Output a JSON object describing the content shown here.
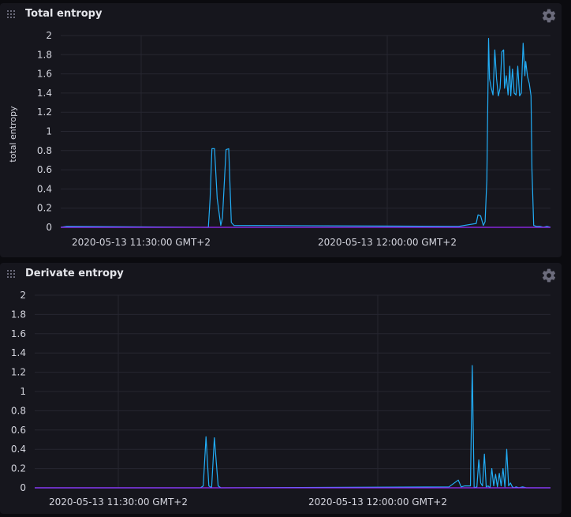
{
  "panels": [
    {
      "title": "Total entropy",
      "chart_data": {
        "type": "line",
        "title": "Total entropy",
        "ylabel": "total entropy",
        "ylim": [
          0,
          2
        ],
        "yticks": [
          "2",
          "1.8",
          "1.6",
          "1.4",
          "1.2",
          "1",
          "0.8",
          "0.6",
          "0.4",
          "0.2",
          "0"
        ],
        "xticks": [
          "2020-05-13 11:30:00 GMT+2",
          "2020-05-13 12:00:00 GMT+2"
        ],
        "grid": true,
        "series": [
          {
            "color": "#22adf6",
            "x": [
              0.0,
              0.7,
              16.7,
              16.9,
              17.1,
              17.4,
              17.7,
              18.1,
              18.3,
              18.7,
              19.0,
              19.3,
              19.6,
              45.0,
              47.0,
              47.2,
              47.5,
              47.8,
              48.0,
              48.2,
              48.4,
              48.5,
              48.7,
              48.9,
              49.1,
              49.3,
              49.5,
              49.7,
              49.9,
              50.1,
              50.2,
              50.4,
              50.6,
              50.8,
              50.9,
              51.1,
              51.3,
              51.5,
              51.7,
              51.9,
              52.1,
              52.3,
              52.5,
              52.6,
              52.8,
              53.0,
              53.2,
              53.3,
              53.5,
              53.8,
              54.2,
              54.6,
              55.0,
              55.4
            ],
            "y": [
              0,
              0.01,
              0,
              0.3,
              0.82,
              0.82,
              0.3,
              0.02,
              0.1,
              0.81,
              0.82,
              0.05,
              0.02,
              0.01,
              0.04,
              0.13,
              0.12,
              0.02,
              0.06,
              0.5,
              1.97,
              1.55,
              1.45,
              1.38,
              1.85,
              1.55,
              1.37,
              1.45,
              1.83,
              1.85,
              1.45,
              1.58,
              1.38,
              1.68,
              1.37,
              1.65,
              1.4,
              1.38,
              1.68,
              1.37,
              1.4,
              1.92,
              1.58,
              1.73,
              1.57,
              1.5,
              1.37,
              0.6,
              0.02,
              0.01,
              0.01,
              0.0,
              0.01,
              0.0
            ]
          },
          {
            "color": "#9b2aff",
            "x": [
              0,
              55.4
            ],
            "y": [
              0,
              0
            ]
          }
        ]
      }
    },
    {
      "title": "Derivate entropy",
      "chart_data": {
        "type": "line",
        "title": "Derivate entropy",
        "ylabel": "",
        "ylim": [
          0,
          2
        ],
        "yticks": [
          "2",
          "1.8",
          "1.6",
          "1.4",
          "1.2",
          "1",
          "0.8",
          "0.6",
          "0.4",
          "0.2",
          "0"
        ],
        "xticks": [
          "2020-05-13 11:30:00 GMT+2",
          "2020-05-13 12:00:00 GMT+2"
        ],
        "grid": true,
        "series": [
          {
            "color": "#22adf6",
            "x": [
              0.0,
              0.7,
              17.8,
              18.1,
              18.4,
              18.7,
              19.0,
              19.3,
              19.7,
              20.0,
              44.5,
              45.5,
              45.8,
              46.2,
              46.8,
              47.0,
              47.2,
              47.5,
              47.7,
              47.9,
              48.1,
              48.3,
              48.5,
              48.7,
              48.9,
              49.1,
              49.3,
              49.5,
              49.7,
              49.9,
              50.1,
              50.3,
              50.5,
              50.7,
              50.9,
              51.1,
              51.3,
              51.5,
              51.7,
              52.0,
              52.4,
              52.8,
              53.2,
              53.8,
              54.2,
              54.6,
              55.0,
              55.4
            ],
            "y": [
              0,
              0.0,
              0,
              0.02,
              0.53,
              0.02,
              0,
              0.52,
              0.02,
              0,
              0.01,
              0.08,
              0.01,
              0.02,
              0.02,
              1.27,
              0.0,
              0.01,
              0.29,
              0.05,
              0.02,
              0.35,
              0.01,
              0.02,
              0.0,
              0.2,
              0.02,
              0.14,
              0.01,
              0.15,
              0.02,
              0.2,
              0.01,
              0.4,
              0.02,
              0.05,
              0.01,
              0.0,
              0.01,
              0.0,
              0.01,
              0.0,
              0.0,
              0.0,
              0.0,
              0.0,
              0.0,
              0.0
            ]
          },
          {
            "color": "#9b2aff",
            "x": [
              0,
              55.4
            ],
            "y": [
              0,
              0
            ]
          }
        ]
      }
    }
  ]
}
